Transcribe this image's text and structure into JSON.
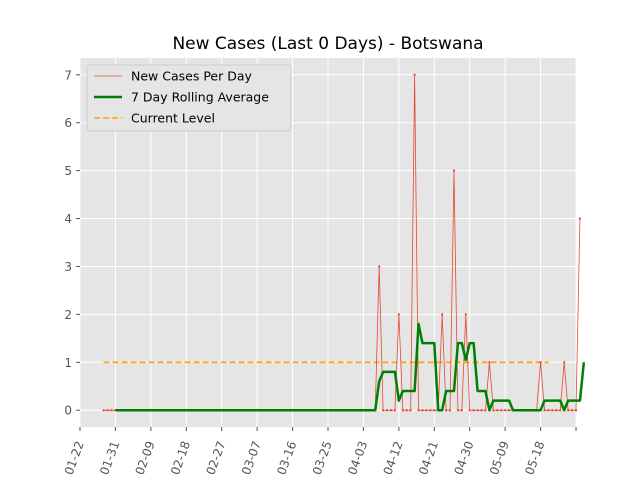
{
  "chart_data": {
    "type": "line",
    "title": "New Cases (Last 0 Days) - Botswana",
    "xlabel": "",
    "ylabel": "",
    "grid": true,
    "legend_position": "top-left",
    "x_tick_labels": [
      "01-22",
      "01-31",
      "02-09",
      "02-18",
      "02-27",
      "03-07",
      "03-16",
      "03-25",
      "04-03",
      "04-12",
      "04-21",
      "04-30",
      "05-09",
      "05-18"
    ],
    "y_ticks": [
      0,
      1,
      2,
      3,
      4,
      5,
      6,
      7
    ],
    "ylim": [
      -0.35,
      7.35
    ],
    "start_date": "2020-01-22",
    "x_range_days": [
      0,
      126
    ],
    "reference_line": {
      "name": "Current Level",
      "value": 1,
      "from_day": 6,
      "to_day": 119,
      "color": "#ffa500"
    },
    "series": [
      {
        "name": "New Cases Per Day",
        "color": "#e24a33",
        "style": "thin-line-markers",
        "start_day": 6,
        "values": [
          0,
          0,
          0,
          0,
          0,
          0,
          0,
          0,
          0,
          0,
          0,
          0,
          0,
          0,
          0,
          0,
          0,
          0,
          0,
          0,
          0,
          0,
          0,
          0,
          0,
          0,
          0,
          0,
          0,
          0,
          0,
          0,
          0,
          0,
          0,
          0,
          0,
          0,
          0,
          0,
          0,
          0,
          0,
          0,
          0,
          0,
          0,
          0,
          0,
          0,
          0,
          0,
          0,
          0,
          0,
          0,
          0,
          0,
          0,
          0,
          0,
          0,
          0,
          0,
          0,
          0,
          0,
          0,
          0,
          0,
          3,
          0,
          0,
          0,
          0,
          2,
          0,
          0,
          0,
          7,
          0,
          0,
          0,
          0,
          0,
          0,
          2,
          0,
          0,
          5,
          0,
          0,
          2,
          0,
          0,
          0,
          0,
          0,
          1,
          0,
          0,
          0,
          0,
          0,
          0,
          0,
          0,
          0,
          0,
          0,
          0,
          1,
          0,
          0,
          0,
          0,
          0,
          1,
          0,
          0,
          0,
          4
        ]
      },
      {
        "name": "7 Day Rolling Average",
        "color": "#008000",
        "style": "thick-line",
        "start_day": 9,
        "values": [
          0,
          0,
          0,
          0,
          0,
          0,
          0,
          0,
          0,
          0,
          0,
          0,
          0,
          0,
          0,
          0,
          0,
          0,
          0,
          0,
          0,
          0,
          0,
          0,
          0,
          0,
          0,
          0,
          0,
          0,
          0,
          0,
          0,
          0,
          0,
          0,
          0,
          0,
          0,
          0,
          0,
          0,
          0,
          0,
          0,
          0,
          0,
          0,
          0,
          0,
          0,
          0,
          0,
          0,
          0,
          0,
          0,
          0,
          0,
          0,
          0,
          0,
          0,
          0,
          0,
          0,
          0,
          0.6,
          0.8,
          0.8,
          0.8,
          0.8,
          0.2,
          0.4,
          0.4,
          0.4,
          0.4,
          1.8,
          1.4,
          1.4,
          1.4,
          1.4,
          0,
          0,
          0.4,
          0.4,
          0.4,
          1.4,
          1.4,
          1.05,
          1.4,
          1.4,
          0.4,
          0.4,
          0.4,
          0,
          0.2,
          0.2,
          0.2,
          0.2,
          0.2,
          0,
          0,
          0,
          0,
          0,
          0,
          0,
          0,
          0.2,
          0.2,
          0.2,
          0.2,
          0.2,
          0,
          0.2,
          0.2,
          0.2,
          0.2,
          1.0
        ]
      }
    ]
  }
}
